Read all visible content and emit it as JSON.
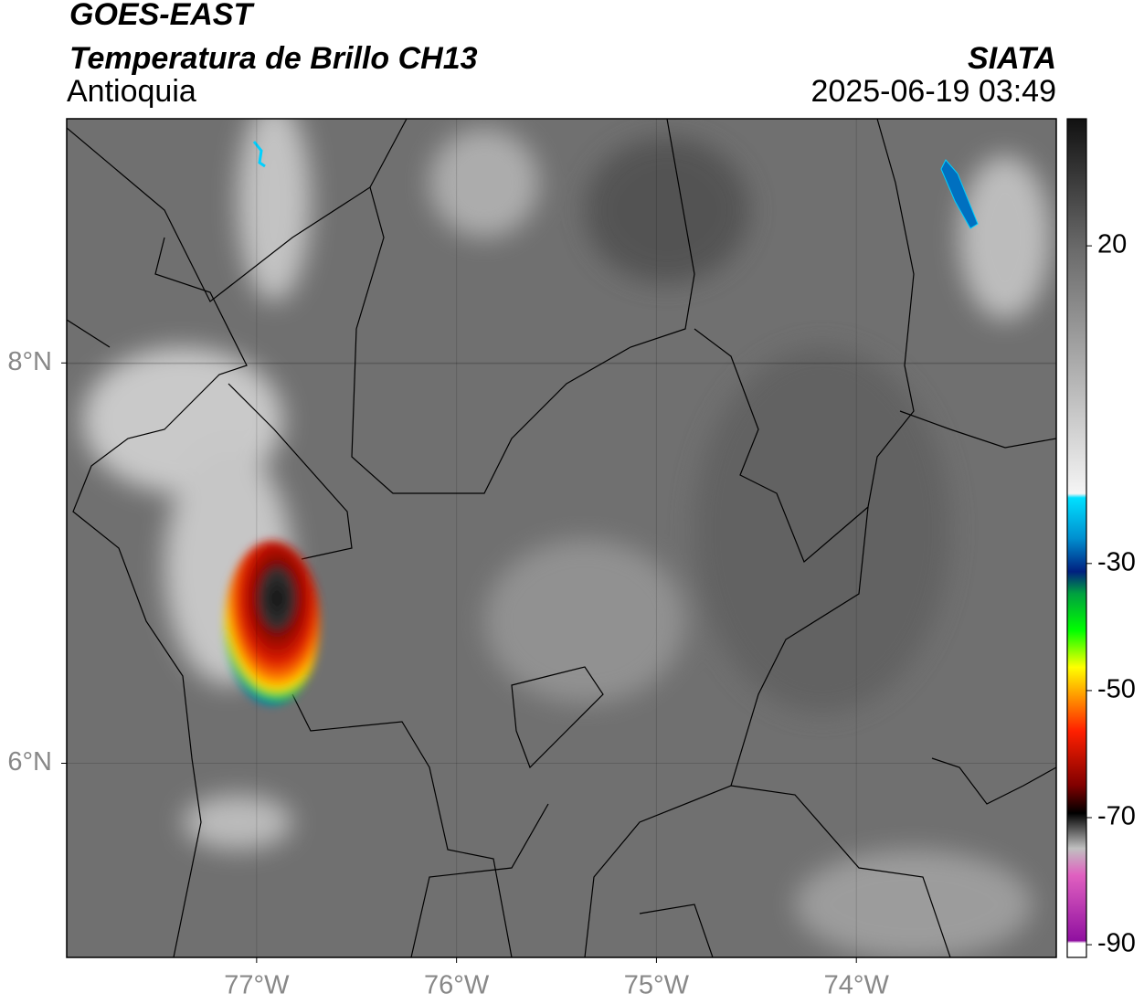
{
  "header": {
    "title": "GOES-EAST",
    "subtitle": "Temperatura de Brillo CH13",
    "region": "Antioquia",
    "source": "SIATA",
    "datetime": "2025-06-19 03:49"
  },
  "map": {
    "xlim": [
      -77.95,
      -73
    ],
    "ylim": [
      5.03,
      9.22
    ],
    "xticks": [
      {
        "value": -77,
        "label": "77°W"
      },
      {
        "value": -76,
        "label": "76°W"
      },
      {
        "value": -75,
        "label": "75°W"
      },
      {
        "value": -74,
        "label": "74°W"
      }
    ],
    "yticks": [
      {
        "value": 6,
        "label": "6°N"
      },
      {
        "value": 8,
        "label": "8°N"
      }
    ]
  },
  "colorbar": {
    "lim": [
      -92,
      40
    ],
    "ticks": [
      -90,
      -70,
      -50,
      -30,
      20
    ]
  }
}
